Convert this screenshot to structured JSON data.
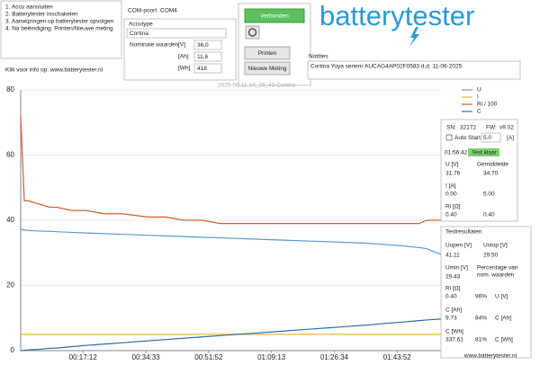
{
  "instructions": [
    "1. Accu aansluiten",
    "2. Batterytester Inschakelen",
    "3. Aanwijzingen op batterytester opvolgen",
    "4. Na beëindiging: Printen/Nieuwe meting"
  ],
  "info_link": "Klik voor info op: www.batterytester.nl",
  "com_port": {
    "label": "COM-poort",
    "value": "COM4"
  },
  "accutype": {
    "label": "Accutype",
    "value": "Cortina",
    "nominal_label": "Nominale waarden",
    "rows": [
      [
        "[V]",
        "36,0"
      ],
      [
        "[Ah]",
        "11,6"
      ],
      [
        "[Wh]",
        "418"
      ]
    ]
  },
  "buttons": {
    "status": "Verbonden",
    "print": "Printen",
    "new": "Nieuwe Meting"
  },
  "logo": "batterytester",
  "notes": {
    "label": "Notities",
    "value": "Cortina Yoya serienr AUCAG4AP02F0583 d.d. 11-06-2025"
  },
  "device": {
    "sn_label": "SN:",
    "sn": "32172",
    "fw_label": "FW:",
    "fw": "v9.02",
    "auto_start": "Auto Start",
    "current": "5.0",
    "current_unit": "[A]",
    "time": "01:56:42",
    "status": "Test klaar",
    "avg_label": "Gemiddelde",
    "rows": [
      [
        "U [V]",
        "31.76",
        "34.70"
      ],
      [
        "I [A]",
        "0.00",
        "5.00"
      ],
      [
        "Ri [Ω]",
        "0.40",
        "0.40"
      ]
    ]
  },
  "results": {
    "title": "Testresultaten",
    "uopen_label": "Uopen [V]",
    "uopen": "41.11",
    "ustop_label": "Ustop [V]",
    "ustop": "29.50",
    "umin_label": "Umin [V]",
    "umin": "29.43",
    "pct_label": "Percentage van",
    "pct_label2": "nom. waarden",
    "rows": [
      [
        "Ri [Ω]",
        "0.40",
        "96%",
        "U [V]"
      ],
      [
        "C [Ah]",
        "9.73",
        "84%",
        "C [Ah]"
      ],
      [
        "C [Wh]",
        "337.61",
        "81%",
        "C [Wh]"
      ]
    ]
  },
  "footer_link": "www.batterytester.nl",
  "chart_data": {
    "type": "line",
    "title": "2025-06-11 14_16_43 Cortina",
    "x": [
      0,
      1,
      2,
      5,
      8,
      10,
      14,
      18,
      23,
      28,
      35,
      40,
      45,
      50,
      55,
      60,
      65,
      70,
      75,
      80,
      85,
      90,
      95,
      100,
      105,
      110,
      112,
      116
    ],
    "series": [
      {
        "name": "U",
        "color": "#5b9bd5",
        "values": [
          37.2,
          37.0,
          36.9,
          36.7,
          36.6,
          36.5,
          36.3,
          36.1,
          35.9,
          35.7,
          35.4,
          35.2,
          35.0,
          34.8,
          34.6,
          34.4,
          34.2,
          34.0,
          33.8,
          33.6,
          33.4,
          33.2,
          33.0,
          32.6,
          32.2,
          31.6,
          31.3,
          29.5
        ]
      },
      {
        "name": "I",
        "color": "#f2b33d",
        "values": [
          5,
          5,
          5,
          5,
          5,
          5,
          5,
          5,
          5,
          5,
          5,
          5,
          5,
          5,
          5,
          5,
          5,
          5,
          5,
          5,
          5,
          5,
          5,
          5,
          5,
          5,
          5,
          5
        ]
      },
      {
        "name": "Ri / 100",
        "color": "#d2602f",
        "values": [
          72,
          46,
          46,
          45,
          44,
          44,
          43,
          43,
          42,
          42,
          41,
          41,
          40,
          40,
          39,
          39,
          39,
          39,
          39,
          39,
          39,
          39,
          39,
          39,
          39,
          39,
          40,
          40
        ]
      },
      {
        "name": "C",
        "color": "#2e6ea6",
        "values": [
          0,
          0.1,
          0.2,
          0.4,
          0.7,
          0.8,
          1.2,
          1.6,
          2.0,
          2.4,
          3.0,
          3.4,
          3.8,
          4.2,
          4.6,
          5.0,
          5.4,
          5.8,
          6.2,
          6.6,
          7.0,
          7.4,
          7.8,
          8.3,
          8.7,
          9.2,
          9.4,
          9.73
        ]
      }
    ],
    "xlim": [
      0,
      116
    ],
    "ylim": [
      0,
      80
    ],
    "yticks": [
      0,
      20,
      40,
      60,
      80
    ],
    "xticks": [
      {
        "value": 17.2,
        "label": "00:17:12"
      },
      {
        "value": 34.55,
        "label": "00:34:33"
      },
      {
        "value": 51.87,
        "label": "00:51:52"
      },
      {
        "value": 69.22,
        "label": "01:09:13"
      },
      {
        "value": 86.57,
        "label": "01:26:34"
      },
      {
        "value": 103.87,
        "label": "01:43:52"
      }
    ],
    "grid": true
  }
}
